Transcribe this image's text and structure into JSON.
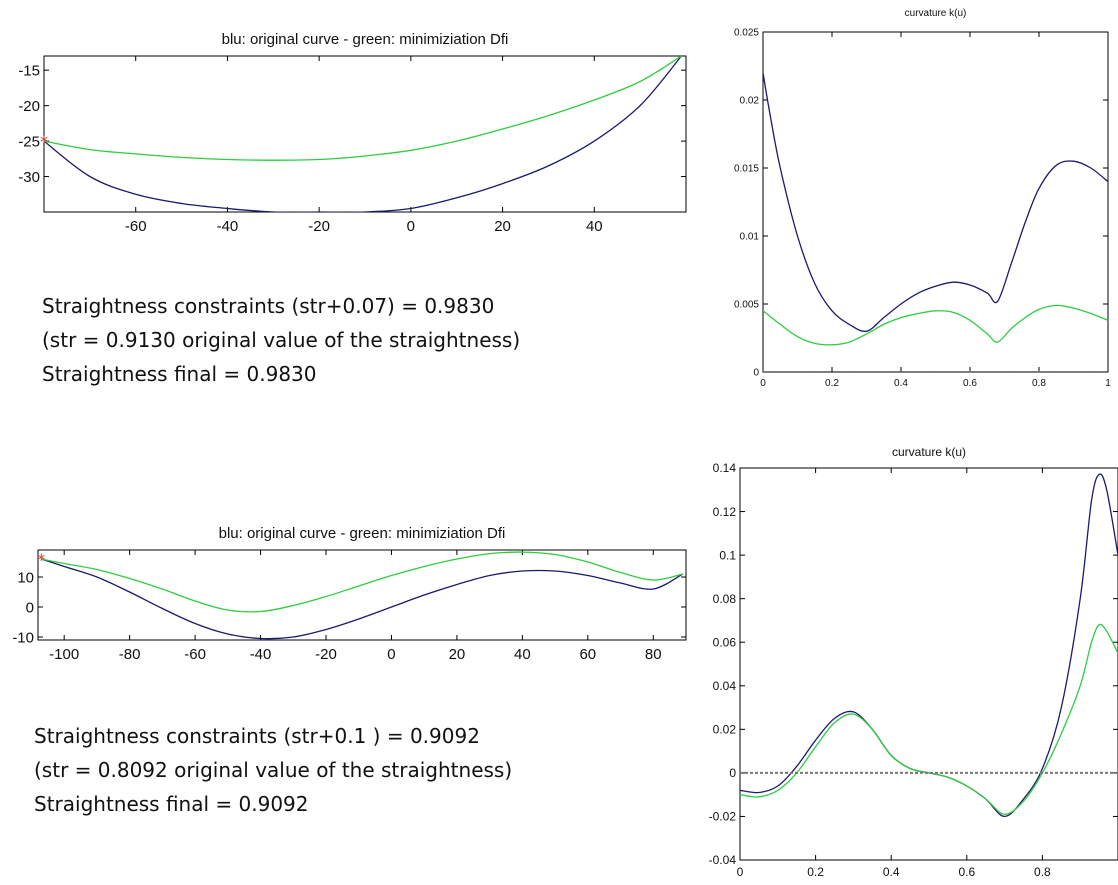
{
  "charts_meta": {
    "colors": {
      "original": "#1a1a6e",
      "minimized": "#2ecc40",
      "zero_line": "#777777",
      "marker": "#e03030"
    }
  },
  "chart_data": [
    {
      "type": "line",
      "title": "blu: original curve - green: minimiziation Dfi",
      "xlabel": "",
      "ylabel": "",
      "xlim": [
        -80,
        60
      ],
      "ylim": [
        -35,
        -13
      ],
      "xticks": [
        -60,
        -40,
        -20,
        0,
        20,
        40
      ],
      "yticks": [
        -15,
        -20,
        -25,
        -30
      ],
      "grid": false,
      "series": [
        {
          "role": "original",
          "x": [
            -80,
            -70,
            -60,
            -50,
            -40,
            -30,
            -20,
            -10,
            0,
            10,
            20,
            30,
            40,
            50,
            59
          ],
          "y": [
            -25,
            -30,
            -32.5,
            -33.8,
            -34.5,
            -35,
            -35,
            -35,
            -34.5,
            -33,
            -31,
            -28.5,
            -25,
            -20,
            -13
          ]
        },
        {
          "role": "minimized",
          "x": [
            -80,
            -70,
            -60,
            -50,
            -40,
            -30,
            -20,
            -10,
            0,
            10,
            20,
            30,
            40,
            50,
            59
          ],
          "y": [
            -25,
            -26.2,
            -26.8,
            -27.3,
            -27.6,
            -27.7,
            -27.6,
            -27.1,
            -26.3,
            -25,
            -23.3,
            -21.4,
            -19.2,
            -16.6,
            -13
          ]
        }
      ]
    },
    {
      "type": "line",
      "title": "curvature k(u)",
      "xlabel": "",
      "ylabel": "",
      "xlim": [
        0,
        1
      ],
      "ylim": [
        0,
        0.025
      ],
      "xticks": [
        0,
        0.2,
        0.4,
        0.6,
        0.8,
        1
      ],
      "yticks": [
        0,
        0.005,
        0.01,
        0.015,
        0.02,
        0.025
      ],
      "grid": false,
      "series": [
        {
          "role": "original",
          "x": [
            0,
            0.02,
            0.05,
            0.1,
            0.15,
            0.2,
            0.25,
            0.3,
            0.35,
            0.4,
            0.45,
            0.5,
            0.55,
            0.6,
            0.65,
            0.68,
            0.72,
            0.76,
            0.8,
            0.85,
            0.9,
            0.95,
            1.0
          ],
          "y": [
            0.022,
            0.019,
            0.015,
            0.01,
            0.0065,
            0.0045,
            0.0035,
            0.003,
            0.004,
            0.005,
            0.0058,
            0.0063,
            0.0066,
            0.0064,
            0.0058,
            0.0052,
            0.008,
            0.011,
            0.0135,
            0.0152,
            0.0155,
            0.015,
            0.014
          ]
        },
        {
          "role": "minimized",
          "x": [
            0,
            0.05,
            0.1,
            0.15,
            0.2,
            0.25,
            0.3,
            0.35,
            0.4,
            0.45,
            0.5,
            0.55,
            0.6,
            0.65,
            0.68,
            0.72,
            0.76,
            0.8,
            0.85,
            0.9,
            0.95,
            1.0
          ],
          "y": [
            0.0045,
            0.0035,
            0.0026,
            0.0021,
            0.002,
            0.0022,
            0.0028,
            0.0035,
            0.004,
            0.0043,
            0.0045,
            0.0044,
            0.0038,
            0.0028,
            0.0022,
            0.0032,
            0.004,
            0.0046,
            0.0049,
            0.0047,
            0.0043,
            0.0038
          ]
        },
        {
          "role": "zero",
          "x": [
            0,
            1
          ],
          "y": [
            0,
            0
          ]
        }
      ]
    },
    {
      "type": "line",
      "title": "blu: original curve - green: minimiziation Dfi",
      "xlabel": "",
      "ylabel": "",
      "xlim": [
        -108,
        90
      ],
      "ylim": [
        -11,
        19
      ],
      "xticks": [
        -100,
        -80,
        -60,
        -40,
        -20,
        0,
        20,
        40,
        60,
        80
      ],
      "yticks": [
        10,
        0,
        -10
      ],
      "grid": false,
      "series": [
        {
          "role": "original",
          "x": [
            -107,
            -100,
            -90,
            -80,
            -70,
            -60,
            -50,
            -40,
            -30,
            -20,
            -10,
            0,
            10,
            20,
            30,
            40,
            50,
            60,
            70,
            80,
            89
          ],
          "y": [
            16,
            13.5,
            10,
            5,
            -0.5,
            -5.5,
            -9,
            -10.5,
            -10,
            -7.5,
            -4,
            0,
            4,
            7.5,
            10.5,
            12,
            12,
            10.5,
            8,
            6,
            11
          ]
        },
        {
          "role": "minimized",
          "x": [
            -107,
            -100,
            -90,
            -80,
            -70,
            -60,
            -50,
            -40,
            -30,
            -20,
            -10,
            0,
            10,
            20,
            30,
            40,
            50,
            60,
            70,
            80,
            89
          ],
          "y": [
            16,
            14.5,
            12.5,
            9.5,
            6,
            2,
            -1,
            -1.5,
            0.5,
            3.5,
            7,
            10.5,
            13.5,
            16,
            17.8,
            18.3,
            17.5,
            15,
            11.5,
            9,
            11
          ]
        }
      ]
    },
    {
      "type": "line",
      "title": "curvature k(u)",
      "xlabel": "",
      "ylabel": "",
      "xlim": [
        0,
        1
      ],
      "ylim": [
        -0.04,
        0.14
      ],
      "xticks": [
        0,
        0.2,
        0.4,
        0.6,
        0.8
      ],
      "yticks": [
        -0.04,
        -0.02,
        0,
        0.02,
        0.04,
        0.06,
        0.08,
        0.1,
        0.12,
        0.14
      ],
      "grid": false,
      "series": [
        {
          "role": "original",
          "x": [
            0,
            0.05,
            0.1,
            0.15,
            0.2,
            0.25,
            0.3,
            0.35,
            0.4,
            0.45,
            0.5,
            0.55,
            0.6,
            0.65,
            0.7,
            0.75,
            0.8,
            0.85,
            0.9,
            0.93,
            0.95,
            0.97,
            1.0
          ],
          "y": [
            -0.008,
            -0.009,
            -0.006,
            0.003,
            0.015,
            0.025,
            0.028,
            0.02,
            0.008,
            0.002,
            0.0,
            -0.002,
            -0.006,
            -0.012,
            -0.02,
            -0.012,
            0.002,
            0.03,
            0.08,
            0.125,
            0.137,
            0.13,
            0.1
          ]
        },
        {
          "role": "minimized",
          "x": [
            0,
            0.05,
            0.1,
            0.15,
            0.2,
            0.25,
            0.3,
            0.35,
            0.4,
            0.45,
            0.5,
            0.55,
            0.6,
            0.65,
            0.7,
            0.75,
            0.8,
            0.85,
            0.9,
            0.93,
            0.95,
            0.97,
            1.0
          ],
          "y": [
            -0.01,
            -0.011,
            -0.008,
            0.0,
            0.012,
            0.023,
            0.027,
            0.02,
            0.008,
            0.002,
            0.0,
            -0.002,
            -0.006,
            -0.012,
            -0.019,
            -0.013,
            0.0,
            0.018,
            0.04,
            0.06,
            0.068,
            0.065,
            0.055
          ]
        },
        {
          "role": "zero",
          "x": [
            0,
            1
          ],
          "y": [
            0,
            0
          ]
        }
      ]
    }
  ],
  "text_blocks": {
    "top": {
      "line1": "Straightness constraints (str+0.07) = 0.9830",
      "line2": "(str = 0.9130 original value of the straightness)",
      "line3": "Straightness final = 0.9830"
    },
    "bottom": {
      "line1": "Straightness constraints (str+0.1 ) =  0.9092",
      "line2": "(str = 0.8092 original value of the straightness)",
      "line3": "Straightness final = 0.9092"
    }
  }
}
